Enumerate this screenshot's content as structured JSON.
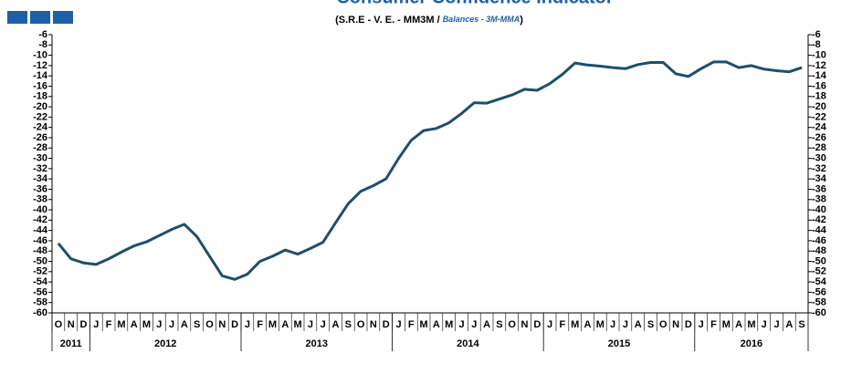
{
  "chart_data": {
    "type": "line",
    "title": "Consumer Confidence Indicator",
    "subtitle": "(S.R.E - V. E. - MM3M / ",
    "subtitle_italic": "Balances - 3M-MMA",
    "subtitle_end": ")",
    "categories": [
      "O",
      "N",
      "D",
      "J",
      "F",
      "M",
      "A",
      "M",
      "J",
      "J",
      "A",
      "S",
      "O",
      "N",
      "D",
      "J",
      "F",
      "M",
      "A",
      "M",
      "J",
      "J",
      "A",
      "S",
      "O",
      "N",
      "D",
      "J",
      "F",
      "M",
      "A",
      "M",
      "J",
      "J",
      "A",
      "S",
      "O",
      "N",
      "D",
      "J",
      "F",
      "M",
      "A",
      "M",
      "J",
      "J",
      "A",
      "S",
      "O",
      "N",
      "D",
      "J",
      "F",
      "M",
      "A",
      "M",
      "J",
      "J",
      "A",
      "S"
    ],
    "years": [
      "2011",
      "2012",
      "2013",
      "2014",
      "2015",
      "2016"
    ],
    "series": [
      {
        "name": "Consumer Confidence Indicator",
        "color": "#1d4f6c",
        "values": [
          -46.5,
          -49.5,
          -50.3,
          -50.6,
          -49.5,
          -48.2,
          -47,
          -46.2,
          -45,
          -43.8,
          -42.8,
          -45.2,
          -49,
          -52.8,
          -53.5,
          -52.5,
          -50,
          -49,
          -47.8,
          -48.6,
          -47.5,
          -46.3,
          -42.5,
          -38.8,
          -36.4,
          -35.3,
          -34,
          -30,
          -26.5,
          -24.6,
          -24.2,
          -23.1,
          -21.3,
          -19.2,
          -19.3,
          -18.5,
          -17.7,
          -16.6,
          -16.8,
          -15.5,
          -13.7,
          -11.5,
          -11.9,
          -12.1,
          -12.4,
          -12.6,
          -11.8,
          -11.4,
          -11.4,
          -13.6,
          -14.1,
          -12.6,
          -11.3,
          -11.3,
          -12.4,
          -12,
          -12.7,
          -13,
          -13.2,
          -12.4
        ]
      }
    ],
    "ylim": [
      -60,
      -6
    ],
    "yticks": [
      -60,
      -58,
      -56,
      -54,
      -52,
      -50,
      -48,
      -46,
      -44,
      -42,
      -40,
      -38,
      -36,
      -34,
      -32,
      -30,
      -28,
      -26,
      -24,
      -22,
      -20,
      -18,
      -16,
      -14,
      -12,
      -10,
      -8,
      -6
    ],
    "grid": false
  }
}
